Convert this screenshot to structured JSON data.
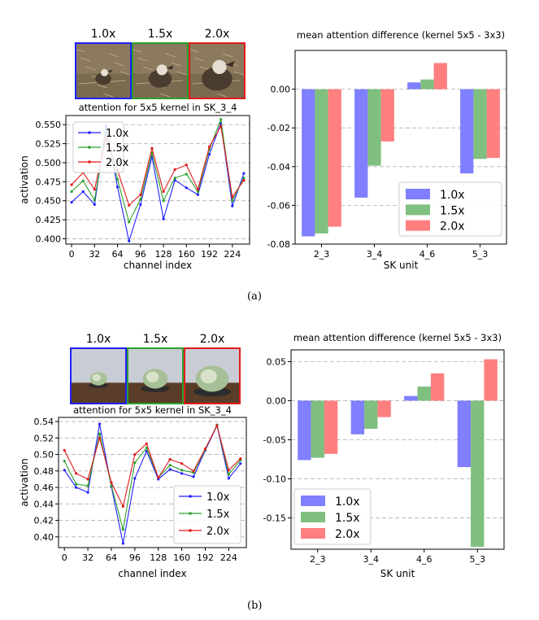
{
  "colors": {
    "blue": "#1f1fff",
    "green": "#2ca02c",
    "red": "#e31a1c",
    "bar_blue": "#7f7fff",
    "bar_green": "#7fbf7f",
    "bar_red": "#ff7f7f"
  },
  "panels": [
    {
      "caption": "(a)",
      "scale_labels": [
        "1.0x",
        "1.5x",
        "2.0x"
      ],
      "thumbnail_subject": "bird",
      "line_title": "attention for 5x5 kernel in SK_3_4",
      "bar_title": "mean attention difference (kernel 5x5 - 3x3)"
    },
    {
      "caption": "(b)",
      "scale_labels": [
        "1.0x",
        "1.5x",
        "2.0x"
      ],
      "thumbnail_subject": "cabbage",
      "line_title": "attention for 5x5 kernel in SK_3_4",
      "bar_title": "mean attention difference (kernel 5x5 - 3x3)"
    }
  ],
  "chart_data": [
    {
      "type": "line",
      "title": "attention for 5x5 kernel in SK_3_4",
      "xlabel": "channel index",
      "ylabel": "activation",
      "x": [
        0,
        16,
        32,
        48,
        64,
        80,
        96,
        112,
        128,
        144,
        160,
        176,
        192,
        208,
        224,
        240
      ],
      "xticks": [
        "0",
        "32",
        "64",
        "96",
        "128",
        "160",
        "192",
        "224"
      ],
      "yticks": [
        "0.400",
        "0.425",
        "0.450",
        "0.475",
        "0.500",
        "0.525",
        "0.550"
      ],
      "ylim": [
        0.393,
        0.562
      ],
      "legend_position": "upper left",
      "series": [
        {
          "name": "1.0x",
          "color": "#1f1fff",
          "values": [
            0.448,
            0.462,
            0.445,
            0.548,
            0.468,
            0.397,
            0.445,
            0.508,
            0.426,
            0.477,
            0.467,
            0.458,
            0.511,
            0.552,
            0.443,
            0.486
          ]
        },
        {
          "name": "1.5x",
          "color": "#2ca02c",
          "values": [
            0.462,
            0.476,
            0.451,
            0.54,
            0.478,
            0.422,
            0.452,
            0.513,
            0.45,
            0.48,
            0.485,
            0.462,
            0.518,
            0.557,
            0.45,
            0.48
          ]
        },
        {
          "name": "2.0x",
          "color": "#e31a1c",
          "values": [
            0.471,
            0.487,
            0.465,
            0.532,
            0.49,
            0.444,
            0.458,
            0.519,
            0.462,
            0.491,
            0.497,
            0.465,
            0.521,
            0.548,
            0.455,
            0.477
          ]
        }
      ]
    },
    {
      "type": "bar",
      "title": "mean attention difference (kernel 5x5 - 3x3)",
      "xlabel": "SK unit",
      "ylabel": "",
      "categories": [
        "2_3",
        "3_4",
        "4_6",
        "5_3"
      ],
      "yticks": [
        "-0.08",
        "-0.06",
        "-0.04",
        "-0.02",
        "0.00"
      ],
      "ylim": [
        -0.08,
        0.02
      ],
      "legend_position": "lower right",
      "series": [
        {
          "name": "1.0x",
          "color": "#7f7fff",
          "values": [
            -0.076,
            -0.056,
            0.0035,
            -0.0435
          ]
        },
        {
          "name": "1.5x",
          "color": "#7fbf7f",
          "values": [
            -0.0745,
            -0.0395,
            0.005,
            -0.036
          ]
        },
        {
          "name": "2.0x",
          "color": "#ff7f7f",
          "values": [
            -0.071,
            -0.027,
            0.0135,
            -0.0355
          ]
        }
      ]
    },
    {
      "type": "line",
      "title": "attention for 5x5 kernel in SK_3_4",
      "xlabel": "channel index",
      "ylabel": "activation",
      "x": [
        0,
        16,
        32,
        48,
        64,
        80,
        96,
        112,
        128,
        144,
        160,
        176,
        192,
        208,
        224,
        240
      ],
      "xticks": [
        "0",
        "32",
        "64",
        "96",
        "128",
        "160",
        "192",
        "224"
      ],
      "yticks": [
        "0.40",
        "0.42",
        "0.44",
        "0.46",
        "0.48",
        "0.50",
        "0.52",
        "0.54"
      ],
      "ylim": [
        0.387,
        0.545
      ],
      "legend_position": "lower right",
      "series": [
        {
          "name": "1.0x",
          "color": "#1f1fff",
          "values": [
            0.481,
            0.46,
            0.454,
            0.537,
            0.461,
            0.392,
            0.471,
            0.504,
            0.47,
            0.482,
            0.477,
            0.473,
            0.505,
            0.535,
            0.471,
            0.489
          ]
        },
        {
          "name": "1.5x",
          "color": "#2ca02c",
          "values": [
            0.492,
            0.464,
            0.462,
            0.525,
            0.462,
            0.409,
            0.49,
            0.508,
            0.472,
            0.487,
            0.481,
            0.478,
            0.506,
            0.536,
            0.476,
            0.493
          ]
        },
        {
          "name": "2.0x",
          "color": "#e31a1c",
          "values": [
            0.505,
            0.477,
            0.47,
            0.52,
            0.466,
            0.437,
            0.5,
            0.513,
            0.472,
            0.494,
            0.489,
            0.48,
            0.507,
            0.535,
            0.481,
            0.495
          ]
        }
      ]
    },
    {
      "type": "bar",
      "title": "mean attention difference (kernel 5x5 - 3x3)",
      "xlabel": "SK unit",
      "ylabel": "",
      "categories": [
        "2_3",
        "3_4",
        "4_6",
        "5_3"
      ],
      "yticks": [
        "-0.15",
        "-0.10",
        "-0.05",
        "0.00",
        "0.05"
      ],
      "ylim": [
        -0.19,
        0.065
      ],
      "legend_position": "lower left",
      "series": [
        {
          "name": "1.0x",
          "color": "#7f7fff",
          "values": [
            -0.076,
            -0.043,
            0.006,
            -0.085
          ]
        },
        {
          "name": "1.5x",
          "color": "#7fbf7f",
          "values": [
            -0.073,
            -0.036,
            0.018,
            -0.187
          ]
        },
        {
          "name": "2.0x",
          "color": "#ff7f7f",
          "values": [
            -0.068,
            -0.021,
            0.035,
            0.053
          ]
        }
      ]
    }
  ]
}
